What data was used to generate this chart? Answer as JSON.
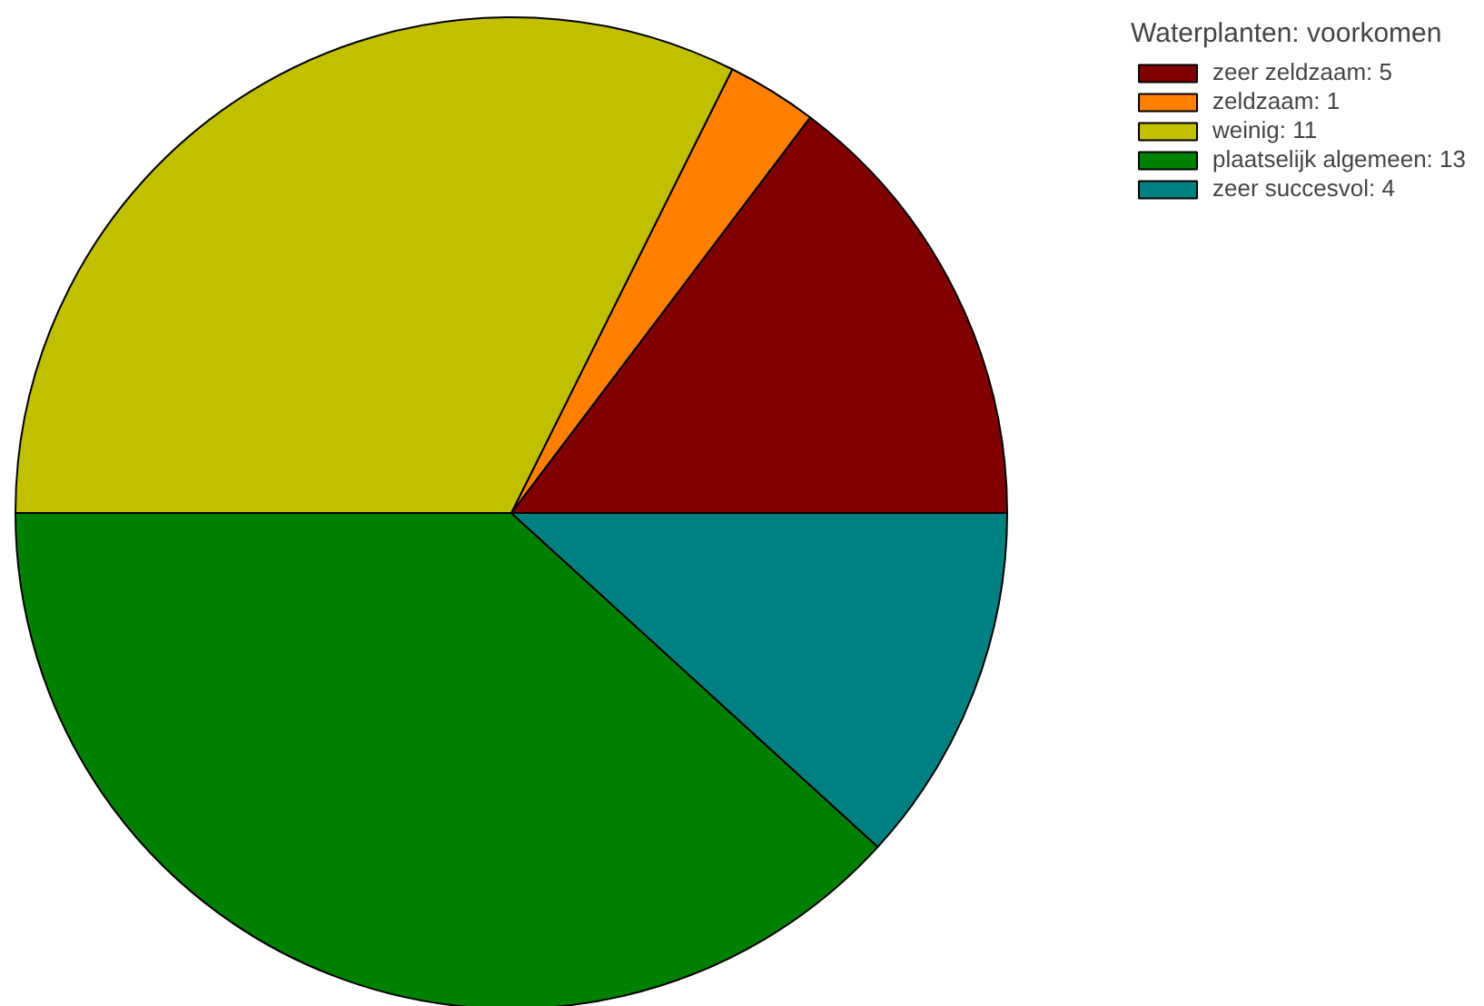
{
  "chart_data": {
    "type": "pie",
    "legend_title": "Waterplanten: voorkomen",
    "legend": "top right",
    "categories": [
      "zeer zeldzaam: 5",
      "zeldzaam: 1",
      "weinig: 11",
      "plaatselijk algemeen: 13",
      "zeer succesvol: 4"
    ],
    "values": [
      5,
      1,
      11,
      13,
      4
    ],
    "colors": [
      "#800000",
      "#ff8000",
      "#c0c000",
      "#008000",
      "#008080"
    ]
  }
}
